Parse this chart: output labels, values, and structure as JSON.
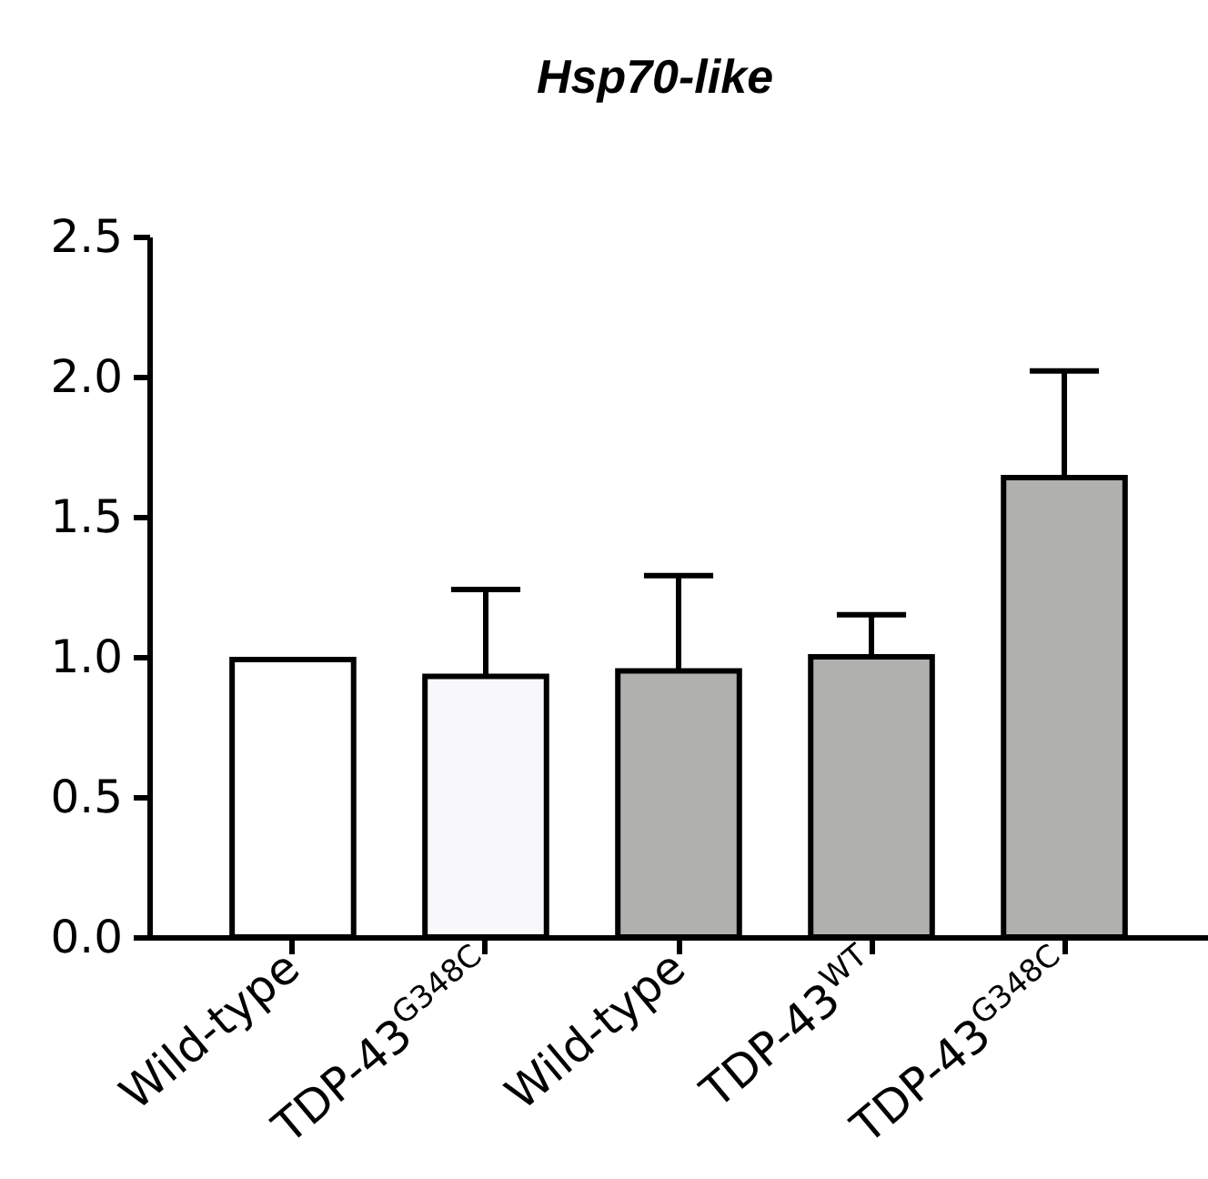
{
  "chart_data": {
    "type": "bar",
    "title": "Hsp70-like",
    "categories": [
      "Wild-type",
      "TDP-43$^{G348C}$",
      "Wild-type",
      "TDP-43$^{WT}$",
      "TDP-43$^{G348C}$"
    ],
    "values": [
      0.99,
      0.93,
      0.95,
      1.0,
      1.64
    ],
    "colors": [
      "#ffffff",
      "#f8f8fa",
      "#b0b1af",
      "#b0b1af",
      "#b0b1af"
    ],
    "errors": [
      null,
      [
        0.93,
        1.24
      ],
      [
        0.95,
        1.29
      ],
      [
        1.0,
        1.15
      ],
      [
        1.64,
        2.02
      ]
    ],
    "ylim": [
      0,
      2.5
    ],
    "yticks": [
      {
        "value": 0,
        "label": "0.0"
      },
      0.5,
      {
        "value": 1,
        "label": "1.0"
      },
      1.5,
      {
        "value": 2,
        "label": "2.0"
      },
      2.5
    ],
    "grid": false
  }
}
